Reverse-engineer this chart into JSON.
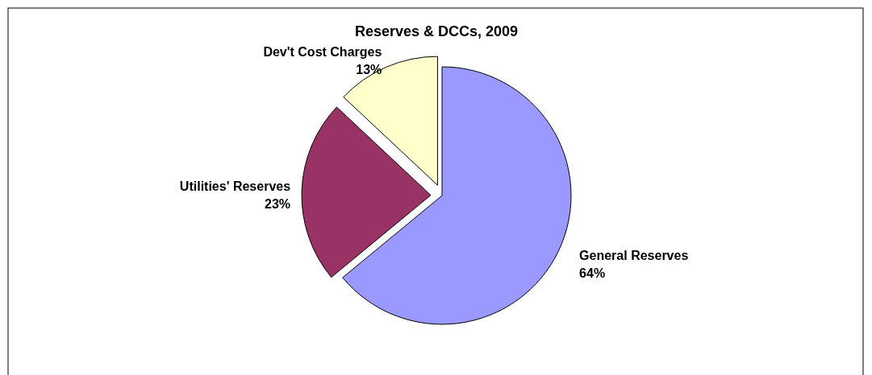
{
  "chart_data": {
    "type": "pie",
    "title": "Reserves & DCCs, 2009",
    "categories": [
      "General Reserves",
      "Utilities' Reserves",
      "Dev't Cost Charges"
    ],
    "values": [
      64,
      23,
      13
    ],
    "value_labels": [
      "64%",
      "23%",
      "13%"
    ],
    "colors": [
      "#9999ff",
      "#993366",
      "#ffffcc"
    ]
  }
}
